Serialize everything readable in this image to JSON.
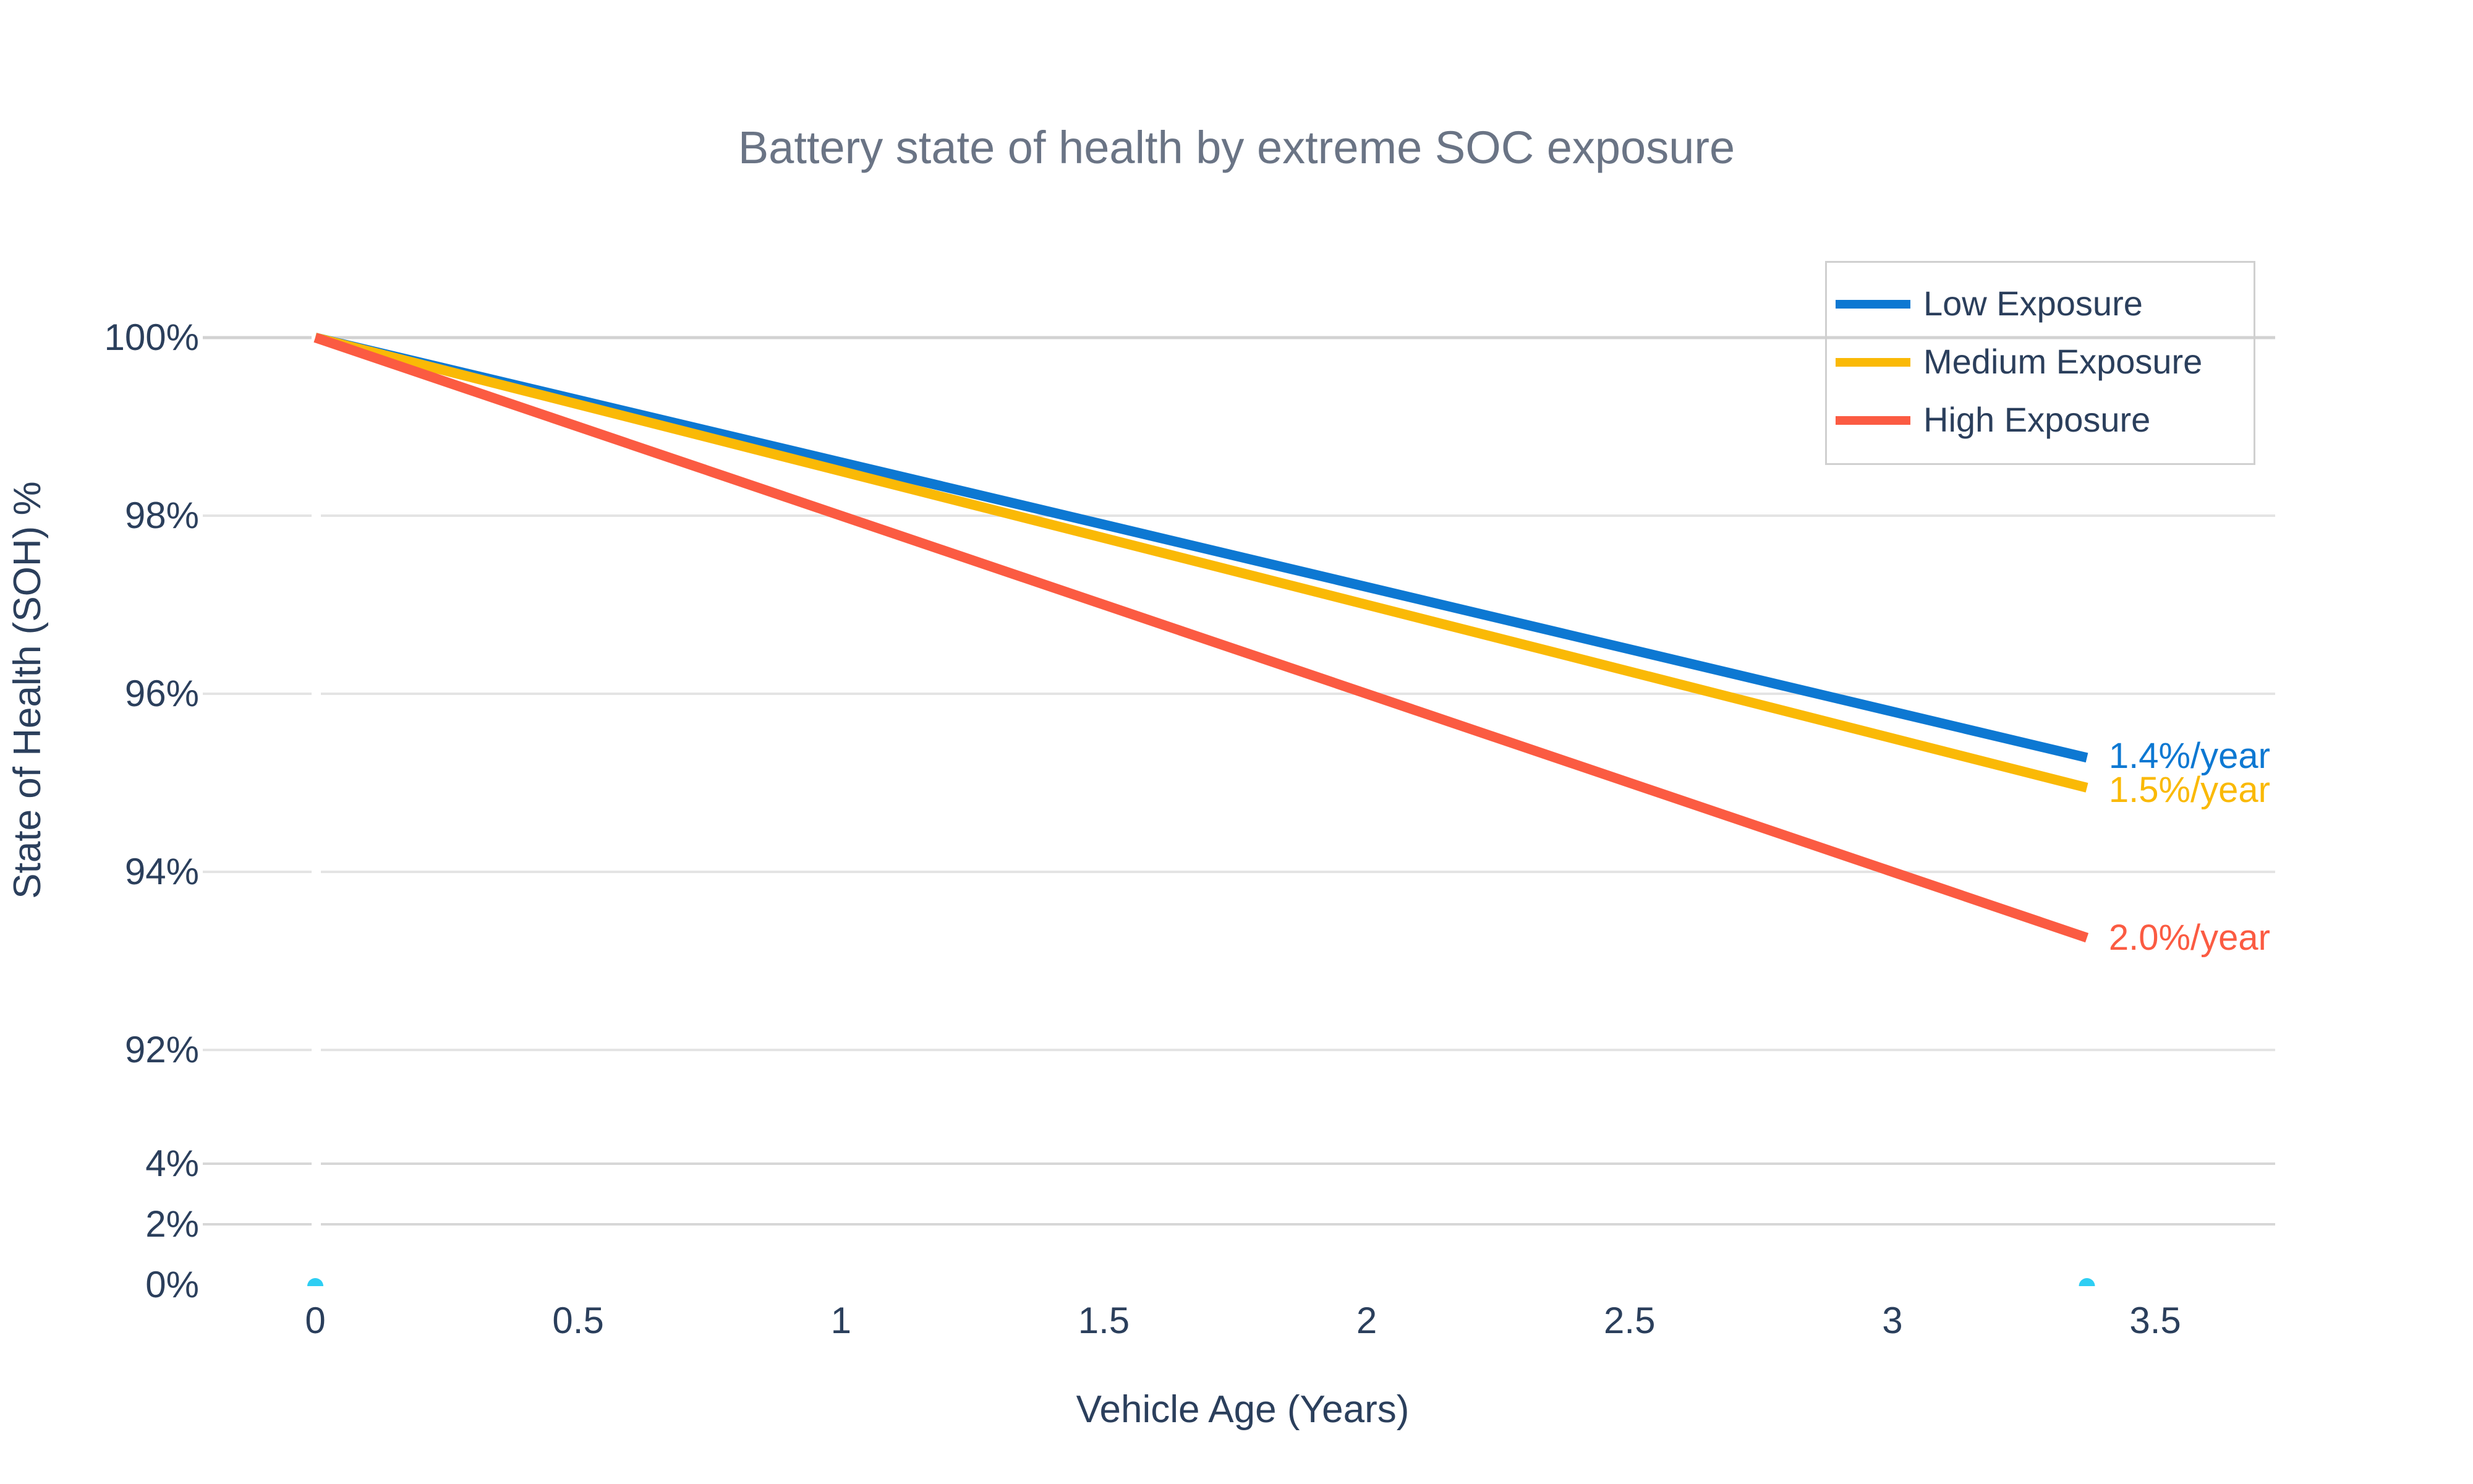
{
  "title": "Battery state of health by extreme SOC exposure",
  "axes": {
    "x_title": "Vehicle Age (Years)",
    "y_title": "State of Health (SOH) %",
    "x_ticks": [
      {
        "value": 0,
        "label": "0"
      },
      {
        "value": 0.5,
        "label": "0.5"
      },
      {
        "value": 1,
        "label": "1"
      },
      {
        "value": 1.5,
        "label": "1.5"
      },
      {
        "value": 2,
        "label": "2"
      },
      {
        "value": 2.5,
        "label": "2.5"
      },
      {
        "value": 3,
        "label": "3"
      },
      {
        "value": 3.5,
        "label": "3.5"
      }
    ],
    "y_ticks_upper": [
      {
        "value": 100,
        "label": "100%"
      },
      {
        "value": 98,
        "label": "98%"
      },
      {
        "value": 96,
        "label": "96%"
      },
      {
        "value": 94,
        "label": "94%"
      },
      {
        "value": 92,
        "label": "92%"
      }
    ],
    "y_ticks_lower": [
      {
        "value": 4,
        "label": "4%",
        "gridline": true
      },
      {
        "value": 2,
        "label": "2%",
        "gridline": true
      },
      {
        "value": 0,
        "label": "0%",
        "gridline": false
      }
    ]
  },
  "legend": {
    "items": [
      {
        "label": "Low Exposure",
        "color": "#0d78d2"
      },
      {
        "label": "Medium Exposure",
        "color": "#fab906"
      },
      {
        "label": "High Exposure",
        "color": "#fb5b42"
      }
    ]
  },
  "annotations": [
    {
      "text": "1.4%/year",
      "color": "#0d78d2",
      "series": "Low Exposure"
    },
    {
      "text": "1.5%/year",
      "color": "#fab906",
      "series": "Medium Exposure"
    },
    {
      "text": "2.0%/year",
      "color": "#fb5b42",
      "series": "High Exposure"
    }
  ],
  "chart_data": {
    "type": "line",
    "title": "Battery state of health by extreme SOC exposure",
    "xlabel": "Vehicle Age (Years)",
    "ylabel": "State of Health (SOH) %",
    "x_range": [
      -0.2,
      3.73
    ],
    "y_axis": {
      "broken": true,
      "upper_segment_ticks": [
        100,
        98,
        96,
        94,
        92
      ],
      "lower_segment_ticks": [
        4,
        2,
        0
      ],
      "tick_format": "percent"
    },
    "grid": true,
    "legend_position": "top-right",
    "series": [
      {
        "name": "Low Exposure",
        "color": "#0d78d2",
        "rate_label": "1.4%/year",
        "rate_pct_per_year": 1.4,
        "x": [
          0,
          3.37
        ],
        "y": [
          100,
          95.3
        ]
      },
      {
        "name": "Medium Exposure",
        "color": "#fab906",
        "rate_label": "1.5%/year",
        "rate_pct_per_year": 1.5,
        "x": [
          0,
          3.37
        ],
        "y": [
          100,
          94.9
        ]
      },
      {
        "name": "High Exposure",
        "color": "#fb5b42",
        "rate_label": "2.0%/year",
        "rate_pct_per_year": 2.0,
        "x": [
          0,
          3.37
        ],
        "y": [
          100,
          93.3
        ]
      }
    ],
    "markers": {
      "name": "zero-soh-markers",
      "color": "#2ecef3",
      "points": [
        [
          0,
          0
        ],
        [
          3.37,
          0
        ]
      ]
    }
  },
  "colors": {
    "tick_text": "#2b3f5c",
    "title_text": "#6a7485",
    "gridline_top": "#d2d2d2",
    "gridline_main": "#e4e4e4",
    "gridline_bottom": "#d7d7d7",
    "legend_border": "#d0d0d0"
  }
}
